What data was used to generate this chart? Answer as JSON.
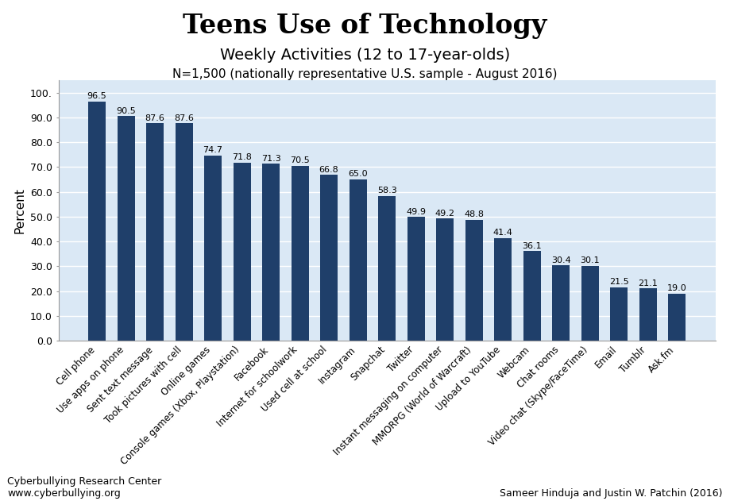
{
  "title": "Teens Use of Technology",
  "subtitle": "Weekly Activities (12 to 17-year-olds)",
  "subtitle2": "N=1,500 (nationally representative U.S. sample - August 2016)",
  "ylabel": "Percent",
  "categories": [
    "Cell phone",
    "Use apps on phone",
    "Sent text message",
    "Took pictures with cell",
    "Online games",
    "Console games (Xbox, Playstation)",
    "Facebook",
    "Internet for schoolwork",
    "Used cell at school",
    "Instagram",
    "Snapchat",
    "Twitter",
    "Instant messaging on computer",
    "MMORPG (World of Warcraft)",
    "Upload to YouTube",
    "Webcam",
    "Chat rooms",
    "Video chat (Skype/FaceTime)",
    "Email",
    "Tumblr",
    "Ask.fm"
  ],
  "values": [
    96.5,
    90.5,
    87.6,
    87.6,
    74.7,
    71.8,
    71.3,
    70.5,
    66.8,
    65.0,
    58.3,
    49.9,
    49.2,
    48.8,
    41.4,
    36.1,
    30.4,
    30.1,
    21.5,
    21.1,
    19.0
  ],
  "bar_color": "#1F3F6A",
  "plot_bg_color": "#DAE8F5",
  "fig_bg_color": "#FFFFFF",
  "ylim": [
    0,
    105
  ],
  "yticks": [
    0.0,
    10.0,
    20.0,
    30.0,
    40.0,
    50.0,
    60.0,
    70.0,
    80.0,
    90.0,
    100.0
  ],
  "ytick_labels": [
    "0.0",
    "10.0",
    "20.0",
    "30.0",
    "40.0",
    "50.0",
    "60.0",
    "70.0",
    "80.0",
    "90.0",
    "100."
  ],
  "footer_left1": "Cyberbullying Research Center",
  "footer_left2": "www.cyberbullying.org",
  "footer_right": "Sameer Hinduja and Justin W. Patchin (2016)",
  "title_fontsize": 24,
  "subtitle_fontsize": 14,
  "subtitle2_fontsize": 11,
  "ylabel_fontsize": 11,
  "bar_label_fontsize": 8,
  "tick_label_fontsize": 8.5,
  "ytick_fontsize": 9,
  "footer_fontsize": 9,
  "bar_width": 0.6
}
